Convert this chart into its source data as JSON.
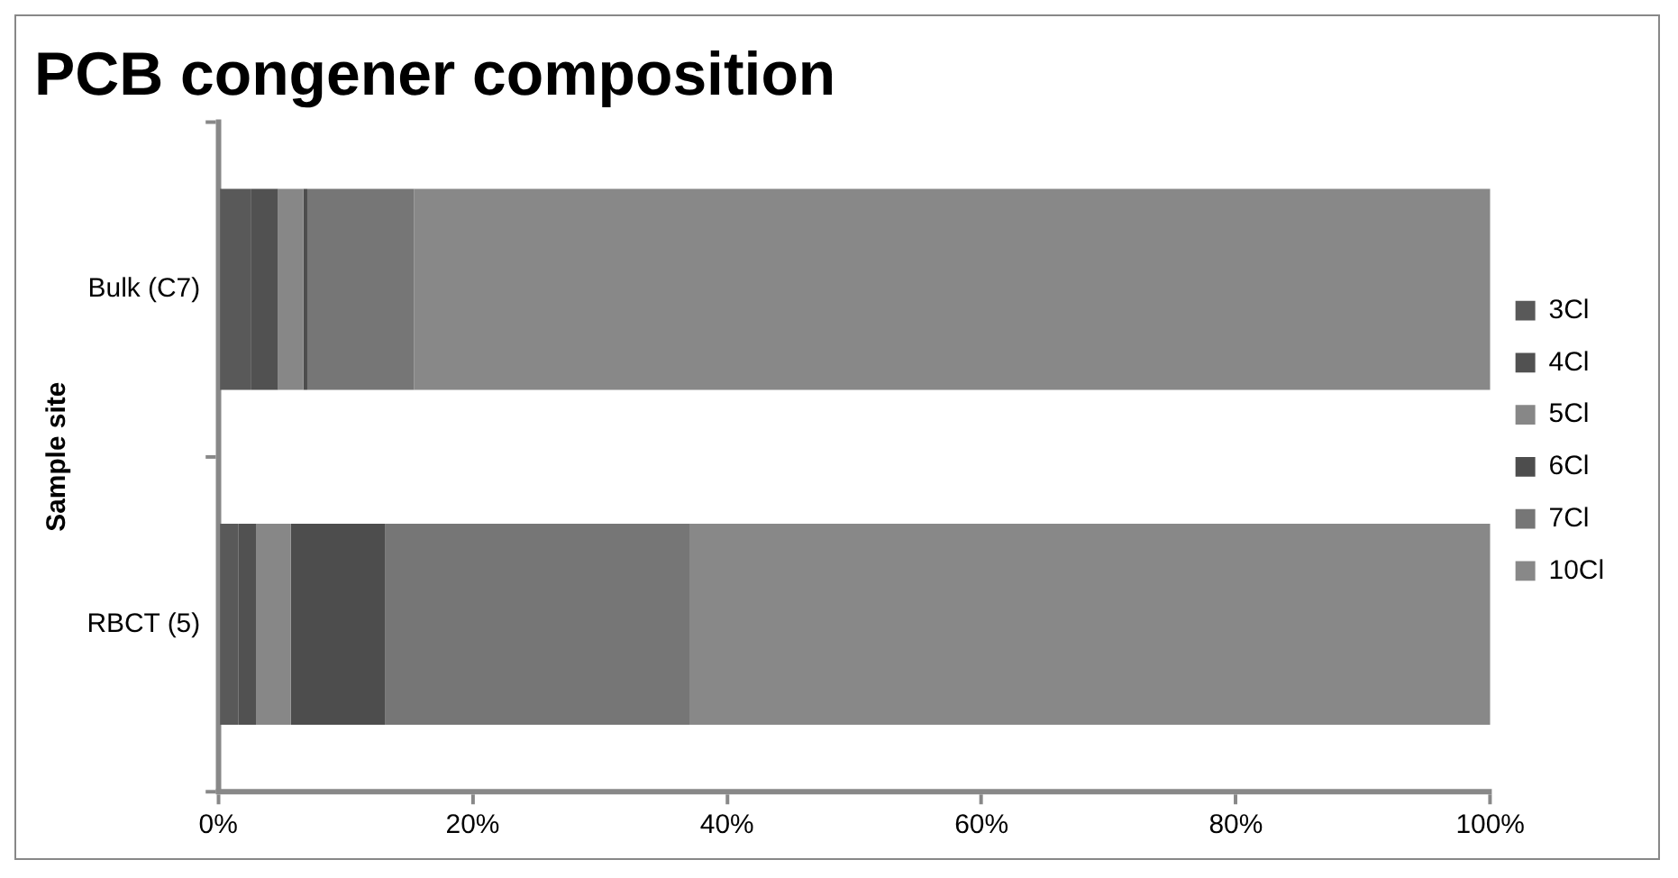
{
  "chart_data": {
    "type": "bar",
    "orientation": "horizontal",
    "stacked": true,
    "title": "PCB congener composition",
    "ylabel": "Sample site",
    "categories": [
      "Bulk (C7)",
      "RBCT (5)"
    ],
    "series": [
      {
        "name": "3Cl",
        "color": "#595959",
        "values": [
          2.6,
          1.6
        ]
      },
      {
        "name": "4Cl",
        "color": "#515151",
        "values": [
          2.1,
          1.4
        ]
      },
      {
        "name": "5Cl",
        "color": "#878787",
        "values": [
          2.0,
          2.7
        ]
      },
      {
        "name": "6Cl",
        "color": "#4d4d4d",
        "values": [
          0.3,
          7.4
        ]
      },
      {
        "name": "7Cl",
        "color": "#767676",
        "values": [
          8.4,
          24.0
        ]
      },
      {
        "name": "10Cl",
        "color": "#888888",
        "values": [
          84.6,
          62.9
        ]
      }
    ],
    "xlim": [
      0,
      100
    ],
    "xticks": [
      {
        "value": 0,
        "label": "0%"
      },
      {
        "value": 20,
        "label": "20%"
      },
      {
        "value": 40,
        "label": "40%"
      },
      {
        "value": 60,
        "label": "60%"
      },
      {
        "value": 80,
        "label": "80%"
      },
      {
        "value": 100,
        "label": "100%"
      }
    ],
    "grid": false,
    "legend": "right"
  }
}
